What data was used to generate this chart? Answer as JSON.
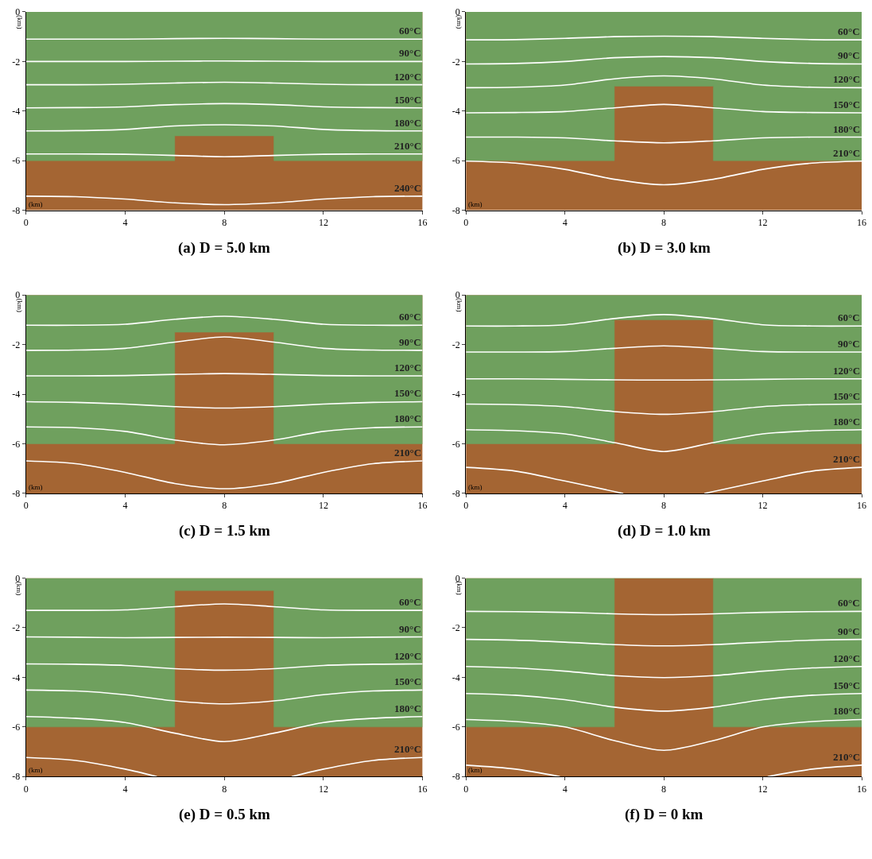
{
  "chart_data": [
    {
      "type": "line",
      "title": "(a) D = 5.0 km",
      "xlabel": "(km)",
      "ylabel": "(km)",
      "xlim": [
        0,
        16
      ],
      "ylim": [
        -8,
        0
      ],
      "xticks": [
        0,
        4,
        8,
        12,
        16
      ],
      "yticks": [
        0,
        -2,
        -4,
        -6,
        -8
      ],
      "series": [
        {
          "type": "area",
          "color": "#a46533",
          "x": [
            0,
            16
          ],
          "values": [
            -8,
            -8
          ]
        },
        {
          "type": "area",
          "color": "#6fa05e",
          "x": [
            0,
            6,
            6,
            10,
            10,
            16
          ],
          "values": [
            -6,
            -6,
            -5,
            -5,
            -6,
            -6
          ]
        },
        {
          "name": "60°C",
          "color": "#ffffff",
          "x": [
            0,
            2,
            4,
            6,
            8,
            10,
            12,
            14,
            16
          ],
          "values": [
            -1.1,
            -1.1,
            -1.1,
            -1.08,
            -1.07,
            -1.08,
            -1.1,
            -1.1,
            -1.1
          ]
        },
        {
          "name": "90°C",
          "color": "#ffffff",
          "x": [
            0,
            2,
            4,
            6,
            8,
            10,
            12,
            14,
            16
          ],
          "values": [
            -2.0,
            -2.0,
            -2.0,
            -1.99,
            -1.98,
            -1.99,
            -2.0,
            -2.0,
            -2.0
          ]
        },
        {
          "name": "120°C",
          "color": "#ffffff",
          "x": [
            0,
            2,
            4,
            6,
            8,
            10,
            12,
            14,
            16
          ],
          "values": [
            -2.94,
            -2.94,
            -2.92,
            -2.87,
            -2.84,
            -2.87,
            -2.92,
            -2.94,
            -2.94
          ]
        },
        {
          "name": "150°C",
          "color": "#ffffff",
          "x": [
            0,
            2,
            4,
            6,
            8,
            10,
            12,
            14,
            16
          ],
          "values": [
            -3.87,
            -3.86,
            -3.83,
            -3.74,
            -3.7,
            -3.74,
            -3.83,
            -3.86,
            -3.87
          ]
        },
        {
          "name": "180°C",
          "color": "#ffffff",
          "x": [
            0,
            2,
            4,
            6,
            8,
            10,
            12,
            14,
            16
          ],
          "values": [
            -4.8,
            -4.79,
            -4.74,
            -4.6,
            -4.55,
            -4.6,
            -4.74,
            -4.79,
            -4.8
          ]
        },
        {
          "name": "210°C",
          "color": "#ffffff",
          "x": [
            0,
            2,
            4,
            6,
            8,
            10,
            12,
            14,
            16
          ],
          "values": [
            -5.73,
            -5.73,
            -5.74,
            -5.79,
            -5.84,
            -5.79,
            -5.74,
            -5.73,
            -5.73
          ]
        },
        {
          "name": "240°C",
          "color": "#ffffff",
          "x": [
            0,
            2,
            4,
            6,
            8,
            10,
            12,
            14,
            16
          ],
          "values": [
            -7.43,
            -7.45,
            -7.55,
            -7.7,
            -7.77,
            -7.7,
            -7.55,
            -7.45,
            -7.43
          ]
        }
      ]
    },
    {
      "type": "line",
      "title": "(b) D = 3.0 km",
      "xlabel": "(km)",
      "ylabel": "(km)",
      "xlim": [
        0,
        16
      ],
      "ylim": [
        -8,
        0
      ],
      "xticks": [
        0,
        4,
        8,
        12,
        16
      ],
      "yticks": [
        0,
        -2,
        -4,
        -6,
        -8
      ],
      "series": [
        {
          "type": "area",
          "color": "#a46533",
          "x": [
            0,
            16
          ],
          "values": [
            -8,
            -8
          ]
        },
        {
          "type": "area",
          "color": "#6fa05e",
          "x": [
            0,
            6,
            6,
            10,
            10,
            16
          ],
          "values": [
            -6,
            -6,
            -3,
            -3,
            -6,
            -6
          ]
        },
        {
          "name": "60°C",
          "color": "#ffffff",
          "x": [
            0,
            2,
            4,
            6,
            8,
            10,
            12,
            14,
            16
          ],
          "values": [
            -1.13,
            -1.12,
            -1.07,
            -1.0,
            -0.98,
            -1.0,
            -1.07,
            -1.12,
            -1.13
          ]
        },
        {
          "name": "90°C",
          "color": "#ffffff",
          "x": [
            0,
            2,
            4,
            6,
            8,
            10,
            12,
            14,
            16
          ],
          "values": [
            -2.1,
            -2.08,
            -2.0,
            -1.85,
            -1.8,
            -1.85,
            -2.0,
            -2.08,
            -2.1
          ]
        },
        {
          "name": "120°C",
          "color": "#ffffff",
          "x": [
            0,
            2,
            4,
            6,
            8,
            10,
            12,
            14,
            16
          ],
          "values": [
            -3.06,
            -3.04,
            -2.95,
            -2.7,
            -2.58,
            -2.7,
            -2.95,
            -3.04,
            -3.06
          ]
        },
        {
          "name": "150°C",
          "color": "#ffffff",
          "x": [
            0,
            2,
            4,
            6,
            8,
            10,
            12,
            14,
            16
          ],
          "values": [
            -4.07,
            -4.06,
            -4.02,
            -3.87,
            -3.73,
            -3.87,
            -4.02,
            -4.06,
            -4.07
          ]
        },
        {
          "name": "180°C",
          "color": "#ffffff",
          "x": [
            0,
            2,
            4,
            6,
            8,
            10,
            12,
            14,
            16
          ],
          "values": [
            -5.05,
            -5.05,
            -5.08,
            -5.2,
            -5.28,
            -5.2,
            -5.08,
            -5.05,
            -5.05
          ]
        },
        {
          "name": "210°C",
          "color": "#ffffff",
          "x": [
            0,
            2,
            4,
            6,
            8,
            10,
            12,
            14,
            16
          ],
          "values": [
            -6.02,
            -6.1,
            -6.35,
            -6.75,
            -6.97,
            -6.75,
            -6.35,
            -6.1,
            -6.02
          ]
        }
      ]
    },
    {
      "type": "line",
      "title": "(c) D = 1.5 km",
      "xlabel": "(km)",
      "ylabel": "(km)",
      "xlim": [
        0,
        16
      ],
      "ylim": [
        -8,
        0
      ],
      "xticks": [
        0,
        4,
        8,
        12,
        16
      ],
      "yticks": [
        0,
        -2,
        -4,
        -6,
        -8
      ],
      "series": [
        {
          "type": "area",
          "color": "#a46533",
          "x": [
            0,
            16
          ],
          "values": [
            -8,
            -8
          ]
        },
        {
          "type": "area",
          "color": "#6fa05e",
          "x": [
            0,
            6,
            6,
            10,
            10,
            16
          ],
          "values": [
            -6,
            -6,
            -1.5,
            -1.5,
            -6,
            -6
          ]
        },
        {
          "name": "60°C",
          "color": "#ffffff",
          "x": [
            0,
            2,
            4,
            6,
            8,
            10,
            12,
            14,
            16
          ],
          "values": [
            -1.22,
            -1.22,
            -1.18,
            -0.98,
            -0.86,
            -0.98,
            -1.18,
            -1.22,
            -1.22
          ]
        },
        {
          "name": "90°C",
          "color": "#ffffff",
          "x": [
            0,
            2,
            4,
            6,
            8,
            10,
            12,
            14,
            16
          ],
          "values": [
            -2.23,
            -2.22,
            -2.15,
            -1.9,
            -1.69,
            -1.9,
            -2.15,
            -2.22,
            -2.23
          ]
        },
        {
          "name": "120°C",
          "color": "#ffffff",
          "x": [
            0,
            2,
            4,
            6,
            8,
            10,
            12,
            14,
            16
          ],
          "values": [
            -3.26,
            -3.26,
            -3.25,
            -3.2,
            -3.17,
            -3.2,
            -3.25,
            -3.26,
            -3.26
          ]
        },
        {
          "name": "150°C",
          "color": "#ffffff",
          "x": [
            0,
            2,
            4,
            6,
            8,
            10,
            12,
            14,
            16
          ],
          "values": [
            -4.3,
            -4.33,
            -4.4,
            -4.5,
            -4.56,
            -4.5,
            -4.4,
            -4.33,
            -4.3
          ]
        },
        {
          "name": "180°C",
          "color": "#ffffff",
          "x": [
            0,
            2,
            4,
            6,
            8,
            10,
            12,
            14,
            16
          ],
          "values": [
            -5.32,
            -5.35,
            -5.5,
            -5.85,
            -6.04,
            -5.85,
            -5.5,
            -5.35,
            -5.32
          ]
        },
        {
          "name": "210°C",
          "color": "#ffffff",
          "x": [
            0,
            2,
            4,
            6,
            8,
            10,
            12,
            14,
            16
          ],
          "values": [
            -6.69,
            -6.8,
            -7.15,
            -7.6,
            -7.81,
            -7.6,
            -7.15,
            -6.8,
            -6.69
          ]
        }
      ]
    },
    {
      "type": "line",
      "title": "(d) D = 1.0 km",
      "xlabel": "(km)",
      "ylabel": "(km)",
      "xlim": [
        0,
        16
      ],
      "ylim": [
        -8,
        0
      ],
      "xticks": [
        0,
        4,
        8,
        12,
        16
      ],
      "yticks": [
        0,
        -2,
        -4,
        -6,
        -8
      ],
      "series": [
        {
          "type": "area",
          "color": "#a46533",
          "x": [
            0,
            16
          ],
          "values": [
            -8,
            -8
          ]
        },
        {
          "type": "area",
          "color": "#6fa05e",
          "x": [
            0,
            6,
            6,
            10,
            10,
            16
          ],
          "values": [
            -6,
            -6,
            -1,
            -1,
            -6,
            -6
          ]
        },
        {
          "name": "60°C",
          "color": "#ffffff",
          "x": [
            0,
            2,
            4,
            6,
            8,
            10,
            12,
            14,
            16
          ],
          "values": [
            -1.25,
            -1.25,
            -1.2,
            -0.95,
            -0.79,
            -0.95,
            -1.2,
            -1.25,
            -1.25
          ]
        },
        {
          "name": "90°C",
          "color": "#ffffff",
          "x": [
            0,
            2,
            4,
            6,
            8,
            10,
            12,
            14,
            16
          ],
          "values": [
            -2.3,
            -2.3,
            -2.28,
            -2.15,
            -2.05,
            -2.15,
            -2.28,
            -2.3,
            -2.3
          ]
        },
        {
          "name": "120°C",
          "color": "#ffffff",
          "x": [
            0,
            2,
            4,
            6,
            8,
            10,
            12,
            14,
            16
          ],
          "values": [
            -3.38,
            -3.38,
            -3.4,
            -3.42,
            -3.43,
            -3.42,
            -3.4,
            -3.38,
            -3.38
          ]
        },
        {
          "name": "150°C",
          "color": "#ffffff",
          "x": [
            0,
            2,
            4,
            6,
            8,
            10,
            12,
            14,
            16
          ],
          "values": [
            -4.4,
            -4.42,
            -4.5,
            -4.7,
            -4.81,
            -4.7,
            -4.5,
            -4.42,
            -4.4
          ]
        },
        {
          "name": "180°C",
          "color": "#ffffff",
          "x": [
            0,
            2,
            4,
            6,
            8,
            10,
            12,
            14,
            16
          ],
          "values": [
            -5.43,
            -5.47,
            -5.6,
            -5.95,
            -6.31,
            -5.95,
            -5.6,
            -5.47,
            -5.43
          ]
        },
        {
          "name": "210°C",
          "color": "#ffffff",
          "x": [
            0,
            2,
            4,
            6.36,
            8,
            9.64,
            12,
            14,
            16
          ],
          "values": [
            -6.95,
            -7.1,
            -7.5,
            -8,
            null,
            -8,
            -7.5,
            -7.1,
            -6.95
          ]
        }
      ]
    },
    {
      "type": "line",
      "title": "(e) D = 0.5 km",
      "xlabel": "(km)",
      "ylabel": "(km)",
      "xlim": [
        0,
        16
      ],
      "ylim": [
        -8,
        0
      ],
      "xticks": [
        0,
        4,
        8,
        12,
        16
      ],
      "yticks": [
        0,
        -2,
        -4,
        -6,
        -8
      ],
      "series": [
        {
          "type": "area",
          "color": "#a46533",
          "x": [
            0,
            16
          ],
          "values": [
            -8,
            -8
          ]
        },
        {
          "type": "area",
          "color": "#6fa05e",
          "x": [
            0,
            6,
            6,
            10,
            10,
            16
          ],
          "values": [
            -6,
            -6,
            -0.5,
            -0.5,
            -6,
            -6
          ]
        },
        {
          "name": "60°C",
          "color": "#ffffff",
          "x": [
            0,
            2,
            4,
            6,
            8,
            10,
            12,
            14,
            16
          ],
          "values": [
            -1.3,
            -1.3,
            -1.28,
            -1.15,
            -1.04,
            -1.15,
            -1.28,
            -1.3,
            -1.3
          ]
        },
        {
          "name": "90°C",
          "color": "#ffffff",
          "x": [
            0,
            2,
            4,
            6,
            8,
            10,
            12,
            14,
            16
          ],
          "values": [
            -2.37,
            -2.38,
            -2.4,
            -2.39,
            -2.38,
            -2.39,
            -2.4,
            -2.38,
            -2.37
          ]
        },
        {
          "name": "120°C",
          "color": "#ffffff",
          "x": [
            0,
            2,
            4,
            6,
            8,
            10,
            12,
            14,
            16
          ],
          "values": [
            -3.46,
            -3.47,
            -3.52,
            -3.65,
            -3.71,
            -3.65,
            -3.52,
            -3.47,
            -3.46
          ]
        },
        {
          "name": "150°C",
          "color": "#ffffff",
          "x": [
            0,
            2,
            4,
            6,
            8,
            10,
            12,
            14,
            16
          ],
          "values": [
            -4.51,
            -4.55,
            -4.7,
            -4.95,
            -5.07,
            -4.95,
            -4.7,
            -4.55,
            -4.51
          ]
        },
        {
          "name": "180°C",
          "color": "#ffffff",
          "x": [
            0,
            2,
            4,
            6,
            8,
            10,
            12,
            14,
            16
          ],
          "values": [
            -5.58,
            -5.65,
            -5.82,
            -6.25,
            -6.59,
            -6.25,
            -5.82,
            -5.65,
            -5.58
          ]
        },
        {
          "name": "210°C",
          "color": "#ffffff",
          "x": [
            0,
            2,
            4,
            5.28,
            8,
            10.72,
            12,
            14,
            16
          ],
          "values": [
            -7.23,
            -7.35,
            -7.7,
            -8,
            null,
            -8,
            -7.7,
            -7.35,
            -7.23
          ]
        }
      ]
    },
    {
      "type": "line",
      "title": "(f) D = 0 km",
      "xlabel": "(km)",
      "ylabel": "(km)",
      "xlim": [
        0,
        16
      ],
      "ylim": [
        -8,
        0
      ],
      "xticks": [
        0,
        4,
        8,
        12,
        16
      ],
      "yticks": [
        0,
        -2,
        -4,
        -6,
        -8
      ],
      "series": [
        {
          "type": "area",
          "color": "#a46533",
          "x": [
            0,
            16
          ],
          "values": [
            -8,
            -8
          ]
        },
        {
          "type": "area",
          "color": "#6fa05e",
          "x": [
            0,
            6,
            6,
            10,
            10,
            16
          ],
          "values": [
            -6,
            -6,
            0,
            0,
            -6,
            -6
          ]
        },
        {
          "name": "60°C",
          "color": "#ffffff",
          "x": [
            0,
            2,
            4,
            6,
            8,
            10,
            12,
            14,
            16
          ],
          "values": [
            -1.34,
            -1.35,
            -1.38,
            -1.44,
            -1.47,
            -1.44,
            -1.38,
            -1.35,
            -1.34
          ]
        },
        {
          "name": "90°C",
          "color": "#ffffff",
          "x": [
            0,
            2,
            4,
            6,
            8,
            10,
            12,
            14,
            16
          ],
          "values": [
            -2.47,
            -2.5,
            -2.58,
            -2.68,
            -2.73,
            -2.68,
            -2.58,
            -2.5,
            -2.47
          ]
        },
        {
          "name": "120°C",
          "color": "#ffffff",
          "x": [
            0,
            2,
            4,
            6,
            8,
            10,
            12,
            14,
            16
          ],
          "values": [
            -3.56,
            -3.62,
            -3.75,
            -3.93,
            -4.01,
            -3.93,
            -3.75,
            -3.62,
            -3.56
          ]
        },
        {
          "name": "150°C",
          "color": "#ffffff",
          "x": [
            0,
            2,
            4,
            6,
            8,
            10,
            12,
            14,
            16
          ],
          "values": [
            -4.65,
            -4.72,
            -4.9,
            -5.2,
            -5.36,
            -5.2,
            -4.9,
            -4.72,
            -4.65
          ]
        },
        {
          "name": "180°C",
          "color": "#ffffff",
          "x": [
            0,
            2,
            4,
            6,
            8,
            10,
            12,
            14,
            16
          ],
          "values": [
            -5.7,
            -5.78,
            -6.0,
            -6.55,
            -6.94,
            -6.55,
            -6.0,
            -5.78,
            -5.7
          ]
        },
        {
          "name": "210°C",
          "color": "#ffffff",
          "x": [
            0,
            2,
            3.8,
            8,
            12.2,
            14,
            16
          ],
          "values": [
            -7.54,
            -7.7,
            -8,
            null,
            -8,
            -7.7,
            -7.54
          ]
        }
      ]
    }
  ]
}
